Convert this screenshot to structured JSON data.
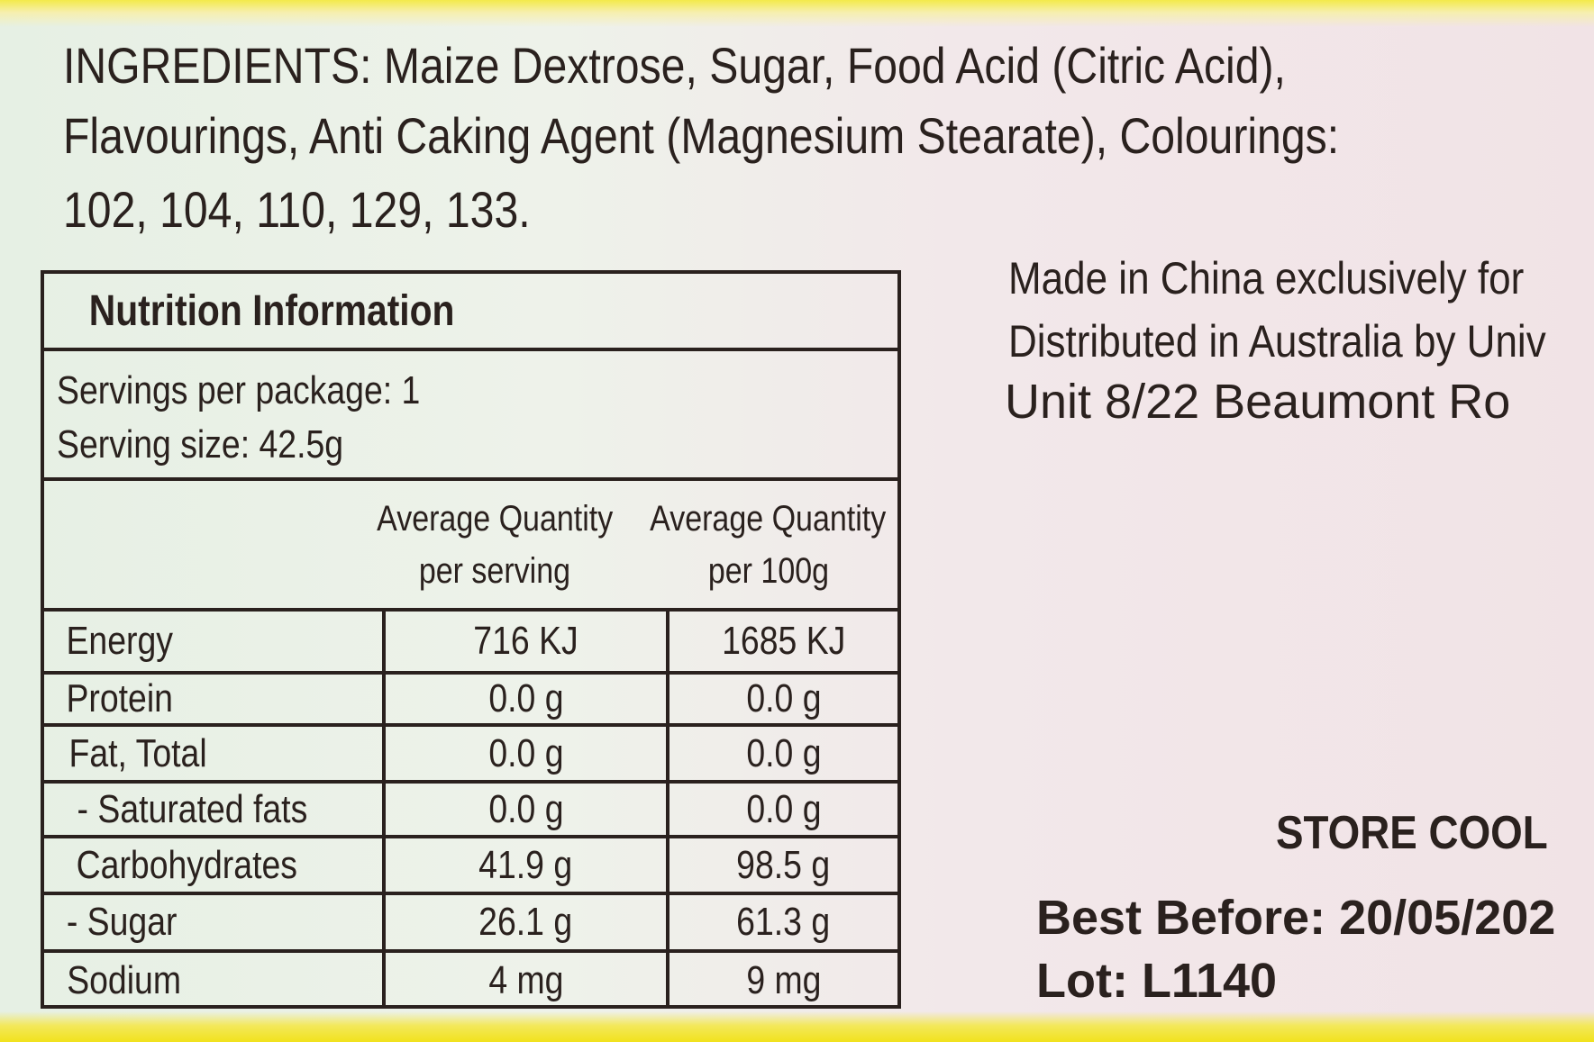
{
  "ingredients": {
    "lines": [
      "INGREDIENTS: Maize Dextrose, Sugar, Food Acid (Citric Acid),",
      "Flavourings, Anti Caking Agent (Magnesium Stearate), Colourings:",
      "102, 104, 110, 129, 133."
    ]
  },
  "nutrition": {
    "title": "Nutrition Information",
    "servings_per_package": "Servings per package: 1",
    "serving_size": "Serving size: 42.5g",
    "col_headers": [
      [
        "Average Quantity",
        "per serving"
      ],
      [
        "Average Quantity",
        "per 100g"
      ]
    ],
    "rows": [
      {
        "label": "Energy",
        "per_serving": "716 KJ",
        "per_100g": "1685 KJ"
      },
      {
        "label": "Protein",
        "per_serving": "0.0 g",
        "per_100g": "0.0 g"
      },
      {
        "label": "Fat, Total",
        "per_serving": "0.0 g",
        "per_100g": "0.0 g"
      },
      {
        "label": "- Saturated fats",
        "per_serving": "0.0 g",
        "per_100g": "0.0 g"
      },
      {
        "label": "Carbohydrates",
        "per_serving": "41.9 g",
        "per_100g": "98.5 g"
      },
      {
        "label": "- Sugar",
        "per_serving": "26.1 g",
        "per_100g": "61.3 g"
      },
      {
        "label": "Sodium",
        "per_serving": "4 mg",
        "per_100g": "9 mg"
      }
    ]
  },
  "manufacturer": {
    "lines": [
      "Made in China exclusively for",
      "Distributed in Australia by Univ",
      "Unit 8/22 Beaumont Ro"
    ]
  },
  "storage": "STORE COOL",
  "best_before": "Best Before: 20/05/202",
  "lot": "Lot:  L1140"
}
